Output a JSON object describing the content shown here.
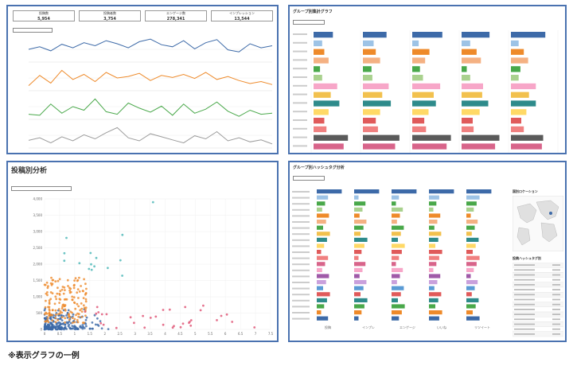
{
  "footnote": "※表示グラフの一例",
  "panel1": {
    "kpis": [
      {
        "label": "投稿数",
        "value": "5,954"
      },
      {
        "label": "投稿者数",
        "value": "3,754"
      },
      {
        "label": "エンゲージ数",
        "value": "278,341"
      },
      {
        "label": "インプレッション",
        "value": "13,544"
      }
    ],
    "series": [
      {
        "color": "#3d6aa8",
        "values": [
          55,
          60,
          52,
          65,
          58,
          68,
          62,
          72,
          66,
          58,
          70,
          75,
          64,
          60,
          72,
          56,
          68,
          74,
          54,
          50,
          66,
          58,
          62
        ]
      },
      {
        "color": "#ee8a2a",
        "values": [
          40,
          60,
          45,
          70,
          52,
          62,
          48,
          66,
          55,
          58,
          64,
          50,
          60,
          56,
          62,
          54,
          66,
          52,
          58,
          50,
          44,
          48,
          42
        ]
      },
      {
        "color": "#49a84a",
        "values": [
          40,
          38,
          60,
          42,
          55,
          48,
          70,
          45,
          40,
          62,
          52,
          44,
          56,
          38,
          60,
          42,
          50,
          64,
          46,
          36,
          48,
          40,
          42
        ]
      },
      {
        "color": "#9c9c9c",
        "values": [
          45,
          50,
          40,
          52,
          44,
          56,
          48,
          60,
          70,
          50,
          44,
          58,
          52,
          46,
          40,
          54,
          48,
          62,
          44,
          50,
          42,
          46,
          38
        ]
      }
    ]
  },
  "panel2": {
    "title": "グループ別集計グラフ",
    "colors": [
      "#3d6aa8",
      "#9dc3e6",
      "#ee8a2a",
      "#f4b183",
      "#49a84a",
      "#a9d18e",
      "#f7a6c8",
      "#f2c14e",
      "#2e8b8b",
      "#ffd966",
      "#e05a5a",
      "#f08080",
      "#5a5a5a",
      "#d8648a"
    ],
    "rows": [
      [
        0.45,
        0.55,
        0.7,
        0.65,
        0.8
      ],
      [
        0.2,
        0.25,
        0.15,
        0.2,
        0.18
      ],
      [
        0.25,
        0.3,
        0.4,
        0.35,
        0.3
      ],
      [
        0.35,
        0.4,
        0.3,
        0.45,
        0.4
      ],
      [
        0.15,
        0.2,
        0.18,
        0.12,
        0.22
      ],
      [
        0.2,
        0.22,
        0.25,
        0.2,
        0.18
      ],
      [
        0.55,
        0.6,
        0.65,
        0.5,
        0.58
      ],
      [
        0.4,
        0.45,
        0.5,
        0.48,
        0.42
      ],
      [
        0.6,
        0.65,
        0.55,
        0.62,
        0.58
      ],
      [
        0.35,
        0.4,
        0.38,
        0.42,
        0.36
      ],
      [
        0.25,
        0.3,
        0.28,
        0.26,
        0.24
      ],
      [
        0.3,
        0.35,
        0.32,
        0.28,
        0.3
      ],
      [
        0.8,
        0.85,
        0.9,
        0.88,
        0.75
      ],
      [
        0.7,
        0.75,
        0.8,
        0.78,
        0.72
      ]
    ]
  },
  "panel3": {
    "title": "投稿別分析",
    "x_ticks": [
      "0",
      "0.5",
      "1",
      "1.5",
      "2",
      "2.5",
      "3",
      "3.5",
      "4",
      "4.5",
      "5",
      "5.5",
      "6",
      "6.5",
      "7",
      "7.5"
    ],
    "y_ticks": [
      "0",
      "500",
      "1,000",
      "1,500",
      "2,000",
      "2,500",
      "3,000",
      "3,500",
      "4,000"
    ]
  },
  "panel4": {
    "title": "グループ別ハッシュタグ分析",
    "map_title": "国別ロケーション",
    "table_title": "投稿ハッシュタグ別",
    "colors": [
      "#3d6aa8",
      "#9dc3e6",
      "#49a84a",
      "#a9d18e",
      "#ee8a2a",
      "#f4b183",
      "#49a84a",
      "#f2c14e",
      "#2e8b8b",
      "#ffd966",
      "#e05a5a",
      "#f08080",
      "#d8648a",
      "#f7a6c8",
      "#a05aa8",
      "#c9a0dc",
      "#5a9bd5",
      "#e05a5a",
      "#2e8b8b",
      "#49a84a",
      "#ee8a2a",
      "#3d6aa8"
    ],
    "col_labels": [
      "投稿",
      "インプレ",
      "エンゲージ",
      "いいね",
      "リツイート"
    ]
  }
}
